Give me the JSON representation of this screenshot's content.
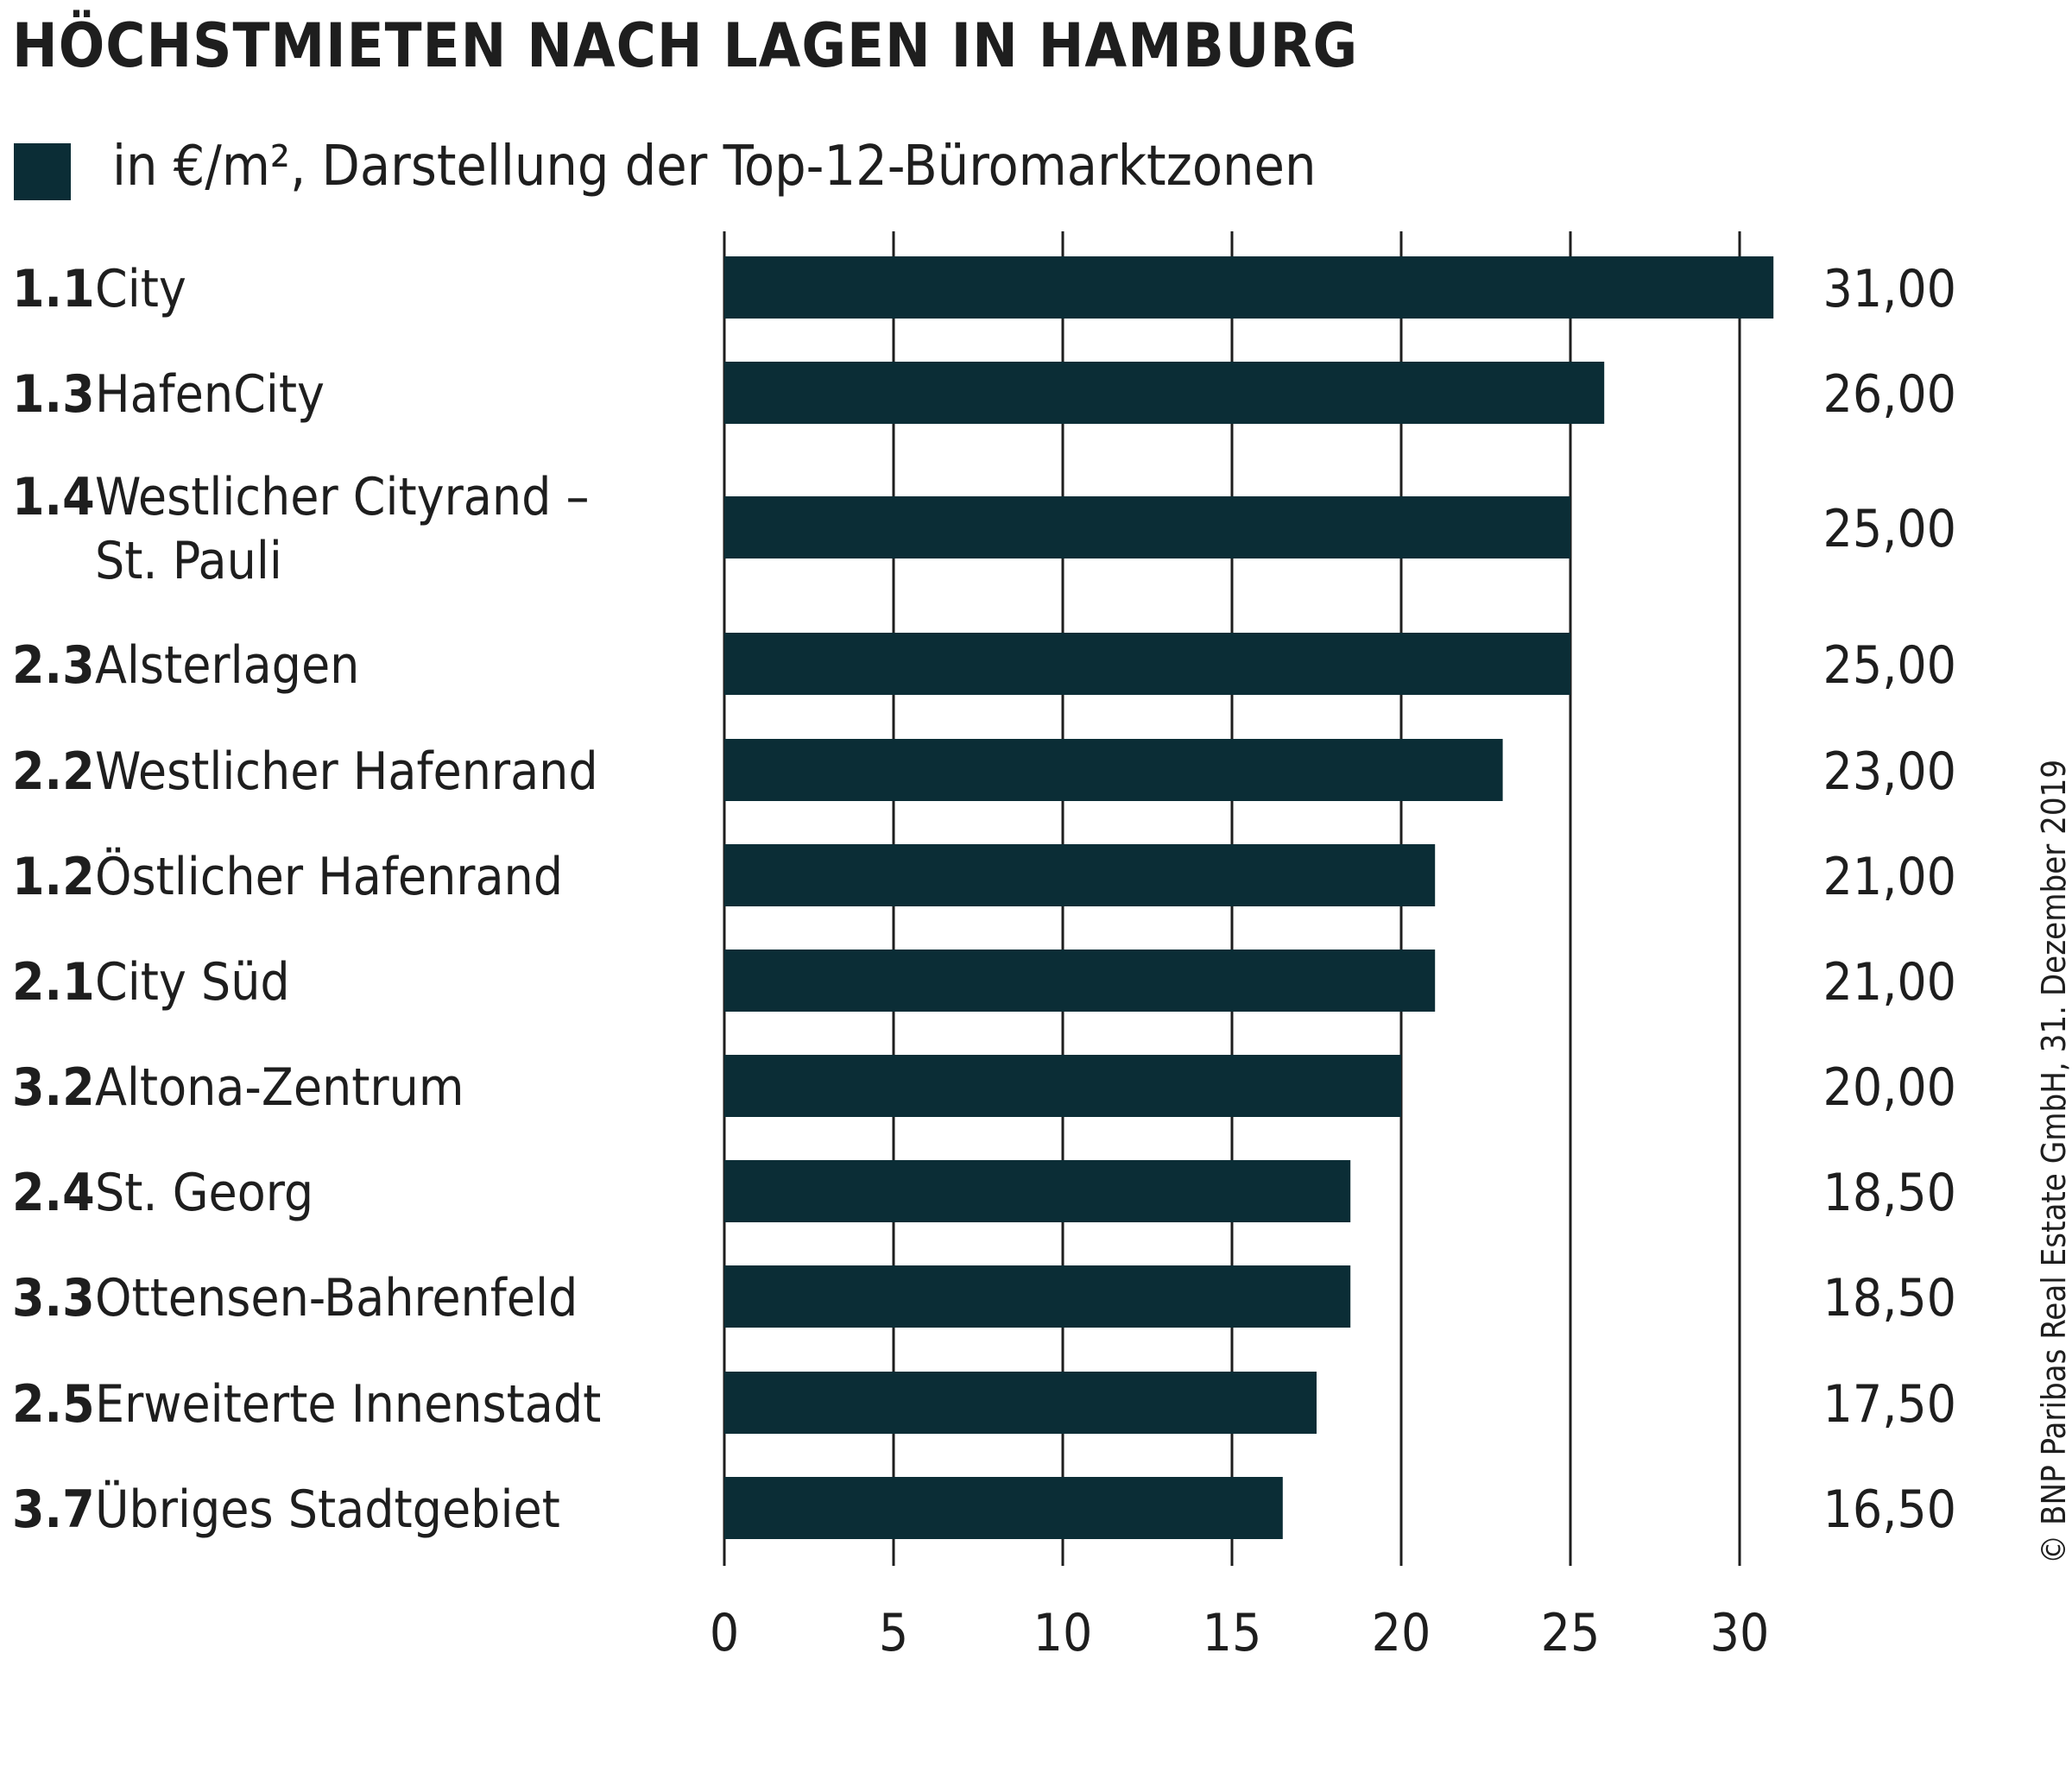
{
  "title": "HÖCHSTMIETEN NACH LAGEN IN HAMBURG",
  "legend": {
    "label": "in €/m², Darstellung der Top-12-Büromarktzonen",
    "color": "#0b2d36"
  },
  "copyright": "© BNP Paribas Real Estate GmbH, 31. Dezember 2019",
  "chart_data": {
    "type": "bar",
    "orientation": "horizontal",
    "categories": [
      {
        "code": "1.1",
        "name": [
          "City"
        ]
      },
      {
        "code": "1.3",
        "name": [
          "HafenCity"
        ]
      },
      {
        "code": "1.4",
        "name": [
          "Westlicher Cityrand –",
          "St. Pauli"
        ]
      },
      {
        "code": "2.3",
        "name": [
          "Alsterlagen"
        ]
      },
      {
        "code": "2.2",
        "name": [
          "Westlicher Hafenrand"
        ]
      },
      {
        "code": "1.2",
        "name": [
          "Östlicher Hafenrand"
        ]
      },
      {
        "code": "2.1",
        "name": [
          "City Süd"
        ]
      },
      {
        "code": "3.2",
        "name": [
          "Altona-Zentrum"
        ]
      },
      {
        "code": "2.4",
        "name": [
          "St. Georg"
        ]
      },
      {
        "code": "3.3",
        "name": [
          "Ottensen-Bahrenfeld"
        ]
      },
      {
        "code": "2.5",
        "name": [
          "Erweiterte Innenstadt"
        ]
      },
      {
        "code": "3.7",
        "name": [
          "Übriges Stadtgebiet"
        ]
      }
    ],
    "values": [
      31,
      26,
      25,
      25,
      23,
      21,
      21,
      20,
      18.5,
      18.5,
      17.5,
      16.5
    ],
    "value_labels": [
      "31,00",
      "26,00",
      "25,00",
      "25,00",
      "23,00",
      "21,00",
      "21,00",
      "20,00",
      "18,50",
      "18,50",
      "17,50",
      "16,50"
    ],
    "xlim": [
      0,
      31
    ],
    "xticks": [
      0,
      5,
      10,
      15,
      20,
      25,
      30
    ],
    "grid": true,
    "bar_color": "#0b2d36",
    "grid_color": "#1e1e1e",
    "text_color": "#1e1e1e"
  }
}
